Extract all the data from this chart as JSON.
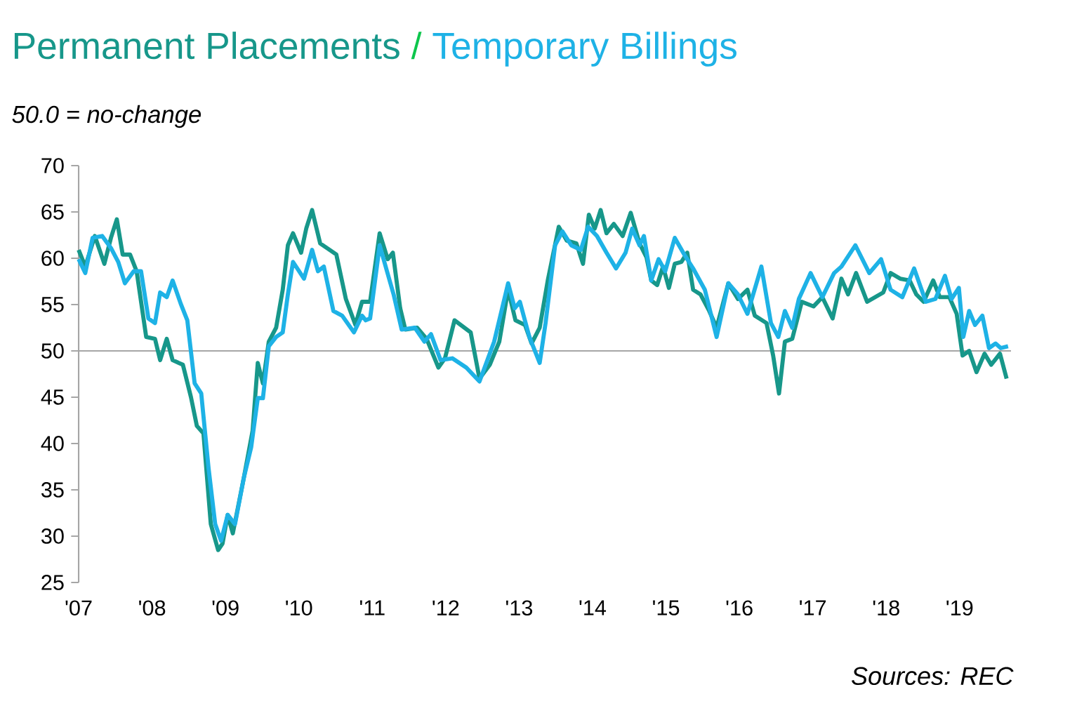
{
  "chart_data": {
    "type": "line",
    "subtitle": "50.0 = no-change",
    "x": [
      2007.0,
      2007.09,
      2007.22,
      2007.35,
      2007.44,
      2007.52,
      2007.6,
      2007.7,
      2007.79,
      2007.92,
      2008.04,
      2008.11,
      2008.2,
      2008.28,
      2008.42,
      2008.53,
      2008.61,
      2008.7,
      2008.8,
      2008.9,
      2008.96,
      2009.03,
      2009.1,
      2009.25,
      2009.37,
      2009.44,
      2009.51,
      2009.59,
      2009.69,
      2009.78,
      2009.85,
      2009.92,
      2010.03,
      2010.1,
      2010.18,
      2010.29,
      2010.42,
      2010.51,
      2010.64,
      2010.77,
      2010.86,
      2010.91,
      2010.97,
      2011.1,
      2011.21,
      2011.28,
      2011.38,
      2011.45,
      2011.61,
      2011.74,
      2011.9,
      2011.99,
      2012.12,
      2012.34,
      2012.46,
      2012.6,
      2012.73,
      2012.85,
      2012.95,
      2013.08,
      2013.17,
      2013.28,
      2013.39,
      2013.54,
      2013.65,
      2013.78,
      2013.87,
      2013.95,
      2014.03,
      2014.11,
      2014.19,
      2014.29,
      2014.41,
      2014.52,
      2014.64,
      2014.735,
      2014.8,
      2014.88,
      2014.96,
      2015.04,
      2015.12,
      2015.21,
      2015.29,
      2015.37,
      2015.47,
      2015.59,
      2015.69,
      2015.85,
      2015.98,
      2016.11,
      2016.21,
      2016.37,
      2016.46,
      2016.54,
      2016.62,
      2016.72,
      2016.85,
      2017.01,
      2017.13,
      2017.27,
      2017.39,
      2017.48,
      2017.59,
      2017.74,
      2017.96,
      2018.06,
      2018.19,
      2018.32,
      2018.41,
      2018.51,
      2018.64,
      2018.73,
      2018.86,
      2018.96,
      2019.04,
      2019.13,
      2019.23,
      2019.34,
      2019.43,
      2019.55,
      2019.64
    ],
    "series": [
      {
        "name": "Permanent Placements",
        "color": "#17978a",
        "values": [
          60.9,
          59.1,
          62.4,
          59.4,
          62.2,
          64.2,
          60.4,
          60.4,
          58.6,
          51.5,
          51.3,
          49.0,
          51.3,
          49.0,
          48.5,
          45.0,
          41.9,
          41.1,
          31.3,
          28.5,
          29.2,
          32.3,
          30.3,
          36.3,
          41.4,
          48.7,
          46.5,
          51.0,
          52.5,
          56.6,
          61.4,
          62.7,
          60.6,
          63.2,
          65.2,
          61.6,
          60.9,
          60.4,
          55.6,
          52.8,
          55.3,
          55.3,
          55.3,
          62.7,
          59.9,
          60.6,
          54.6,
          52.3,
          52.5,
          51.3,
          48.2,
          49.2,
          53.3,
          52.0,
          47.0,
          48.5,
          51.0,
          56.6,
          53.3,
          52.8,
          50.8,
          52.5,
          57.6,
          63.4,
          61.9,
          61.6,
          59.4,
          64.7,
          63.2,
          65.2,
          62.7,
          63.7,
          62.4,
          64.9,
          61.6,
          60.1,
          57.6,
          57.1,
          59.1,
          56.8,
          59.4,
          59.6,
          60.6,
          56.6,
          56.1,
          54.3,
          52.5,
          57.3,
          55.6,
          56.6,
          53.8,
          53.0,
          49.5,
          45.4,
          51.0,
          51.3,
          55.3,
          54.8,
          55.8,
          53.5,
          57.8,
          56.1,
          58.4,
          55.3,
          56.3,
          58.4,
          57.8,
          57.6,
          56.1,
          55.3,
          57.6,
          55.8,
          55.8,
          54.0,
          49.5,
          50.0,
          47.7,
          49.7,
          48.5,
          49.7,
          47.0
        ]
      },
      {
        "name": "Temporary Billings",
        "color": "#1eb2e6",
        "x": [
          2007.0,
          2007.09,
          2007.19,
          2007.32,
          2007.44,
          2007.54,
          2007.63,
          2007.75,
          2007.85,
          2007.95,
          2008.04,
          2008.11,
          2008.2,
          2008.28,
          2008.39,
          2008.48,
          2008.58,
          2008.67,
          2008.77,
          2008.86,
          2008.94,
          2009.03,
          2009.13,
          2009.25,
          2009.35,
          2009.44,
          2009.51,
          2009.59,
          2009.69,
          2009.78,
          2009.85,
          2009.92,
          2010.07,
          2010.18,
          2010.26,
          2010.34,
          2010.47,
          2010.59,
          2010.75,
          2010.86,
          2010.91,
          2010.97,
          2011.1,
          2011.2,
          2011.29,
          2011.4,
          2011.58,
          2011.71,
          2011.8,
          2011.93,
          2012.09,
          2012.28,
          2012.46,
          2012.66,
          2012.85,
          2012.94,
          2013.01,
          2013.14,
          2013.28,
          2013.36,
          2013.49,
          2013.59,
          2013.71,
          2013.84,
          2013.94,
          2014.06,
          2014.19,
          2014.32,
          2014.45,
          2014.54,
          2014.64,
          2014.7,
          2014.8,
          2014.9,
          2014.99,
          2015.12,
          2015.25,
          2015.37,
          2015.53,
          2015.69,
          2015.85,
          2015.98,
          2016.11,
          2016.3,
          2016.43,
          2016.53,
          2016.62,
          2016.72,
          2016.81,
          2016.97,
          2017.13,
          2017.29,
          2017.39,
          2017.58,
          2017.77,
          2017.93,
          2018.06,
          2018.22,
          2018.38,
          2018.54,
          2018.67,
          2018.8,
          2018.89,
          2018.99,
          2019.05,
          2019.13,
          2019.21,
          2019.31,
          2019.4,
          2019.49,
          2019.56,
          2019.66
        ],
        "values": [
          59.9,
          58.4,
          62.2,
          62.4,
          61.1,
          59.6,
          57.3,
          58.6,
          58.6,
          53.5,
          53.0,
          56.3,
          55.8,
          57.6,
          55.1,
          53.3,
          46.5,
          45.4,
          37.3,
          31.3,
          29.5,
          32.3,
          31.3,
          36.3,
          39.6,
          44.9,
          44.9,
          50.5,
          51.5,
          52.0,
          56.1,
          59.6,
          57.8,
          60.9,
          58.6,
          59.1,
          54.3,
          53.8,
          52.0,
          53.8,
          53.3,
          53.5,
          61.4,
          58.6,
          56.1,
          52.3,
          52.5,
          51.0,
          51.8,
          49.0,
          49.2,
          48.2,
          46.7,
          51.0,
          57.3,
          54.6,
          55.3,
          51.5,
          48.7,
          53.0,
          61.4,
          62.9,
          61.4,
          60.9,
          63.4,
          62.4,
          60.6,
          58.9,
          60.6,
          63.2,
          61.4,
          62.4,
          57.6,
          59.9,
          58.6,
          62.2,
          60.4,
          58.9,
          56.6,
          51.5,
          57.3,
          56.1,
          54.0,
          59.1,
          53.0,
          51.5,
          54.3,
          52.5,
          55.6,
          58.4,
          55.8,
          58.4,
          59.1,
          61.4,
          58.4,
          59.9,
          56.6,
          55.8,
          58.9,
          55.3,
          55.6,
          58.1,
          55.6,
          56.8,
          51.5,
          54.3,
          52.8,
          53.8,
          50.3,
          50.8,
          50.3,
          50.5
        ]
      }
    ],
    "xlim": [
      2007,
      2019.7
    ],
    "xticks": [
      {
        "value": 2007,
        "label": "'07"
      },
      {
        "value": 2008,
        "label": "'08"
      },
      {
        "value": 2009,
        "label": "'09"
      },
      {
        "value": 2010,
        "label": "'10"
      },
      {
        "value": 2011,
        "label": "'11"
      },
      {
        "value": 2012,
        "label": "'12"
      },
      {
        "value": 2013,
        "label": "'13"
      },
      {
        "value": 2014,
        "label": "'14"
      },
      {
        "value": 2015,
        "label": "'15"
      },
      {
        "value": 2016,
        "label": "'16"
      },
      {
        "value": 2017,
        "label": "'17"
      },
      {
        "value": 2018,
        "label": "'18"
      },
      {
        "value": 2019,
        "label": "'19"
      }
    ],
    "ylim": [
      25,
      70
    ],
    "yticks": [
      25,
      30,
      35,
      40,
      45,
      50,
      55,
      60,
      65,
      70
    ],
    "ref_lines": [
      {
        "axis": "y",
        "value": 50,
        "color": "#a6a6a6"
      }
    ],
    "legend": "top left",
    "line_style": "solid",
    "marker": "none",
    "grid": false,
    "annotations": [
      "/",
      "Sources: REC"
    ]
  }
}
